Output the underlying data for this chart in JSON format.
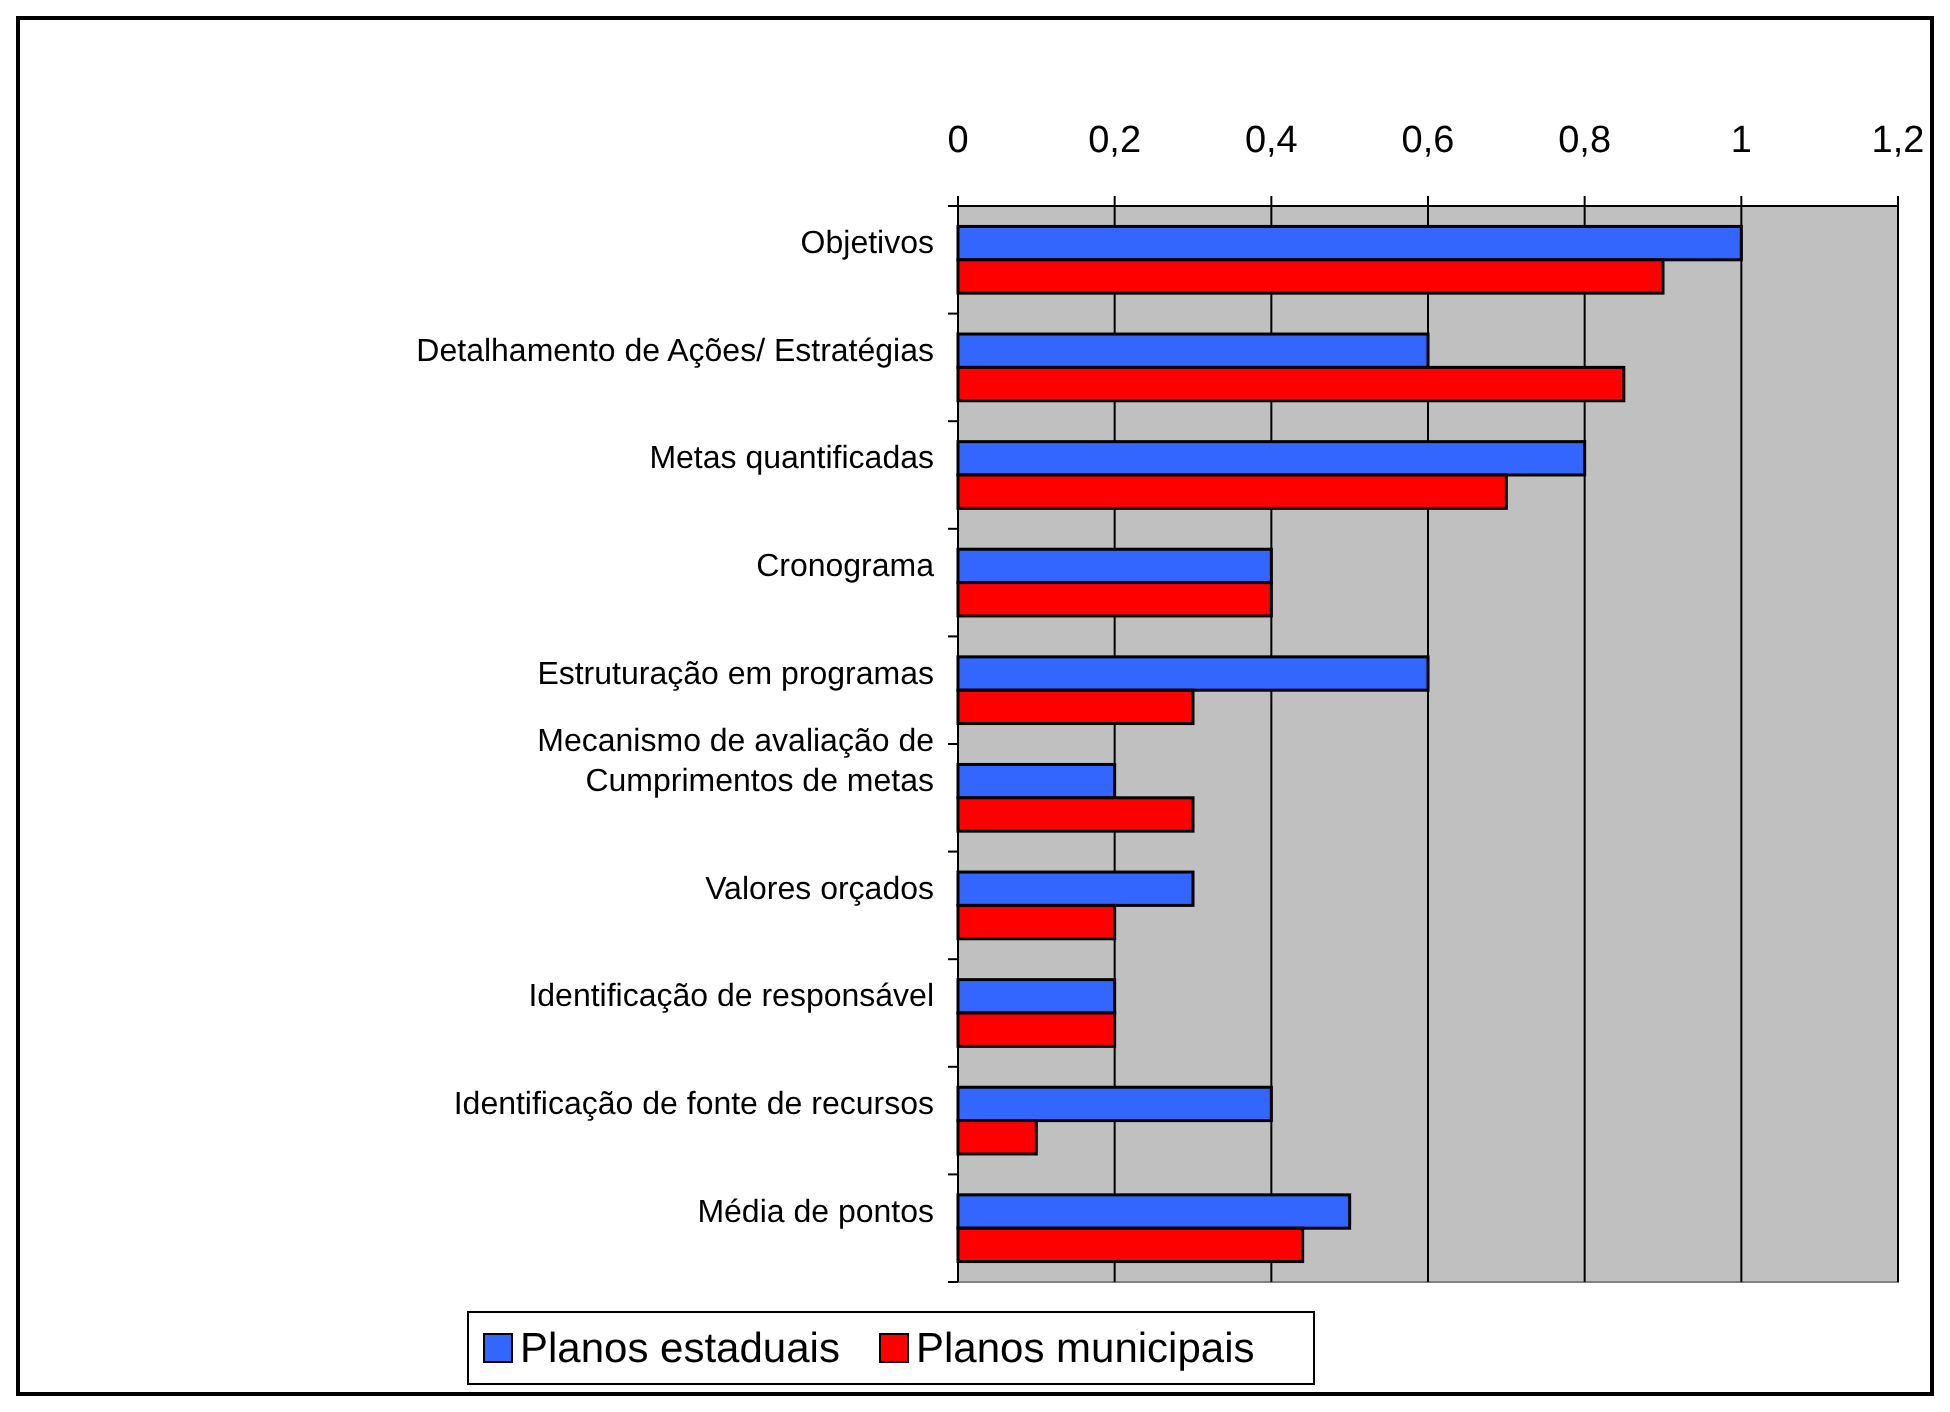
{
  "chart_data": {
    "type": "bar",
    "orientation": "horizontal",
    "categories": [
      "Objetivos",
      "Detalhamento de Ações/ Estratégias",
      "Metas quantificadas",
      "Cronograma",
      "Estruturação em programas",
      "Mecanismo de avaliação de\nCumprimentos de metas",
      "Valores orçados",
      "Identificação de responsável",
      "Identificação de fonte de recursos",
      "Média de pontos"
    ],
    "series": [
      {
        "name": "Planos estaduais",
        "color": "#3366ff",
        "values": [
          1,
          0.6,
          0.8,
          0.4,
          0.6,
          0.2,
          0.3,
          0.2,
          0.4,
          0.5
        ]
      },
      {
        "name": "Planos municipais",
        "color": "#ff0000",
        "values": [
          0.9,
          0.85,
          0.7,
          0.4,
          0.3,
          0.3,
          0.2,
          0.2,
          0.1,
          0.44
        ]
      }
    ],
    "xlim": [
      0,
      1.2
    ],
    "xticks": [
      0,
      {
        "value": 0.2,
        "label": "0,2"
      },
      {
        "value": 0.4,
        "label": "0,4"
      },
      {
        "value": 0.6,
        "label": "0,6"
      },
      {
        "value": 0.8,
        "label": "0,8"
      },
      1,
      {
        "value": 1.2,
        "label": "1,2"
      }
    ],
    "grid": "x",
    "legend": "bottom"
  }
}
